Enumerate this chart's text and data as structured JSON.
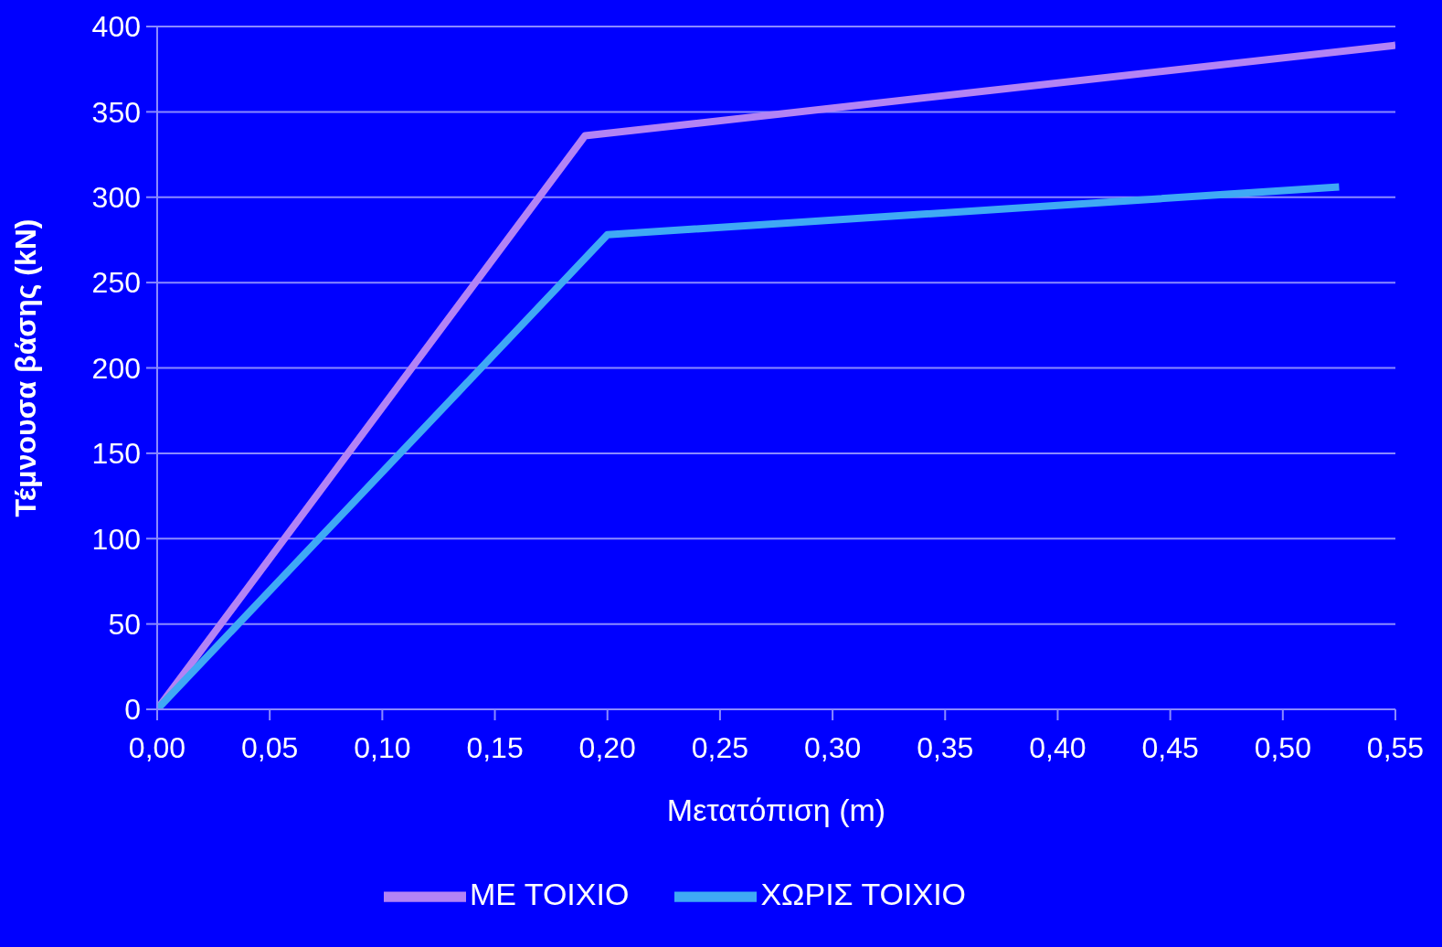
{
  "chart_data": {
    "type": "line",
    "xlabel": "Μετατόπιση (m)",
    "ylabel": "Τέμνουσα βάσης (kN)",
    "series": [
      {
        "name": "ΜΕ ΤΟΙΧΙΟ",
        "color": "#b383f5",
        "x": [
          0,
          0.19,
          0.55
        ],
        "values": [
          0,
          336,
          389
        ]
      },
      {
        "name": "ΧΩΡΙΣ ΤΟΙΧΙΟ",
        "color": "#3fa9f5",
        "x": [
          0,
          0.2,
          0.525
        ],
        "values": [
          0,
          278,
          306
        ]
      }
    ],
    "xlim": [
      0,
      0.55
    ],
    "xticks": [
      {
        "value": 0,
        "label": "0,00"
      },
      {
        "value": 0.05,
        "label": "0,05"
      },
      {
        "value": 0.1,
        "label": "0,10"
      },
      {
        "value": 0.15,
        "label": "0,15"
      },
      {
        "value": 0.2,
        "label": "0,20"
      },
      {
        "value": 0.25,
        "label": "0,25"
      },
      {
        "value": 0.3,
        "label": "0,30"
      },
      {
        "value": 0.35,
        "label": "0,35"
      },
      {
        "value": 0.4,
        "label": "0,40"
      },
      {
        "value": 0.45,
        "label": "0,45"
      },
      {
        "value": 0.5,
        "label": "0,50"
      },
      {
        "value": 0.55,
        "label": "0,55"
      }
    ],
    "ylim": [
      0,
      400
    ],
    "yticks": [
      0,
      50,
      100,
      150,
      200,
      250,
      300,
      350,
      400
    ],
    "grid": "y",
    "legend": "bottom",
    "marker": "none",
    "line_style": "solid"
  }
}
